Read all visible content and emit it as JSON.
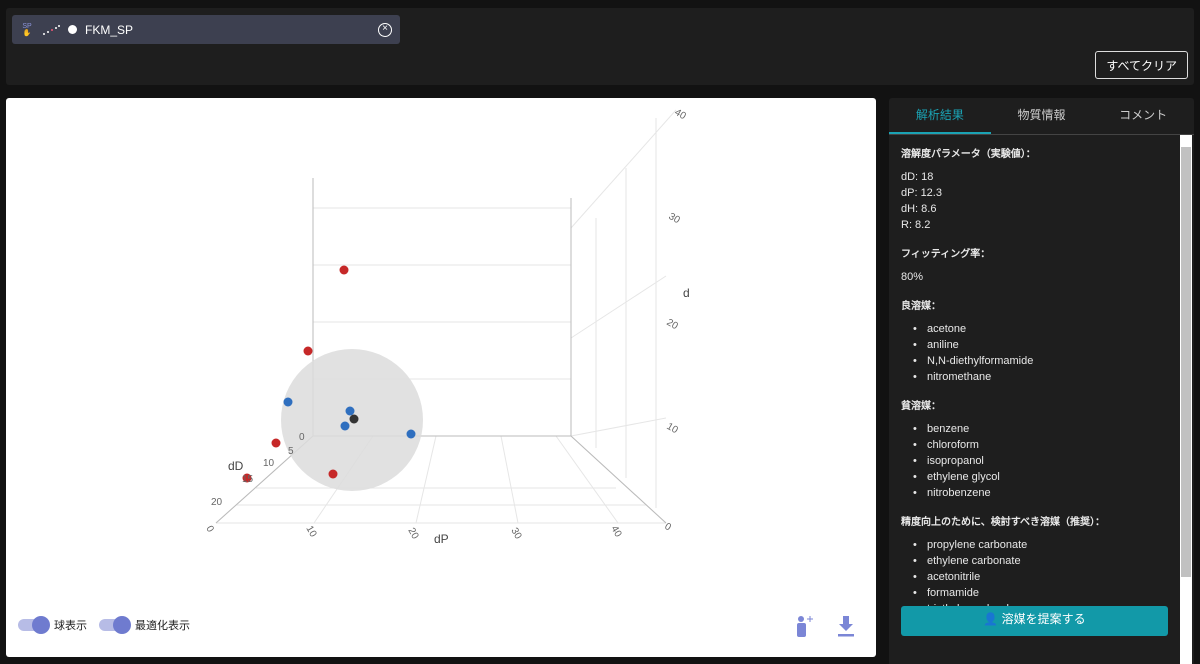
{
  "header": {
    "chip": {
      "badge": "SP",
      "name": "FKM_SP",
      "close_icon": "close-circle-icon"
    },
    "clear_all": "すべてクリア"
  },
  "plot": {
    "axes": {
      "x_title": "dD",
      "y_title": "dP",
      "z_title": "d",
      "x_ticks": [
        "0",
        "5",
        "10",
        "15",
        "20"
      ],
      "y_ticks": [
        "0",
        "10",
        "20",
        "30",
        "40"
      ],
      "z_ticks": [
        "0",
        "10",
        "20",
        "30",
        "40"
      ]
    },
    "colors": {
      "good": "#2f6fbf",
      "bad": "#c62828",
      "center": "#333333",
      "sphere": "#dcdcdc"
    },
    "toggles": [
      {
        "label": "球表示",
        "on": true
      },
      {
        "label": "最適化表示",
        "on": true
      }
    ],
    "icons": [
      "add-solvent-icon",
      "download-icon"
    ]
  },
  "side": {
    "tabs": [
      "解析結果",
      "物質情報",
      "コメント"
    ],
    "active_tab": 0,
    "params_title": "溶解度パラメータ（実験値）：",
    "params": [
      "dD: 18",
      "dP: 12.3",
      "dH: 8.6",
      "R: 8.2"
    ],
    "fit_title": "フィッティング率：",
    "fit": "80%",
    "good_title": "良溶媒：",
    "good": [
      "acetone",
      "aniline",
      "N,N-diethylformamide",
      "nitromethane"
    ],
    "bad_title": "貧溶媒：",
    "bad": [
      "benzene",
      "chloroform",
      "isopropanol",
      "ethylene glycol",
      "nitrobenzene"
    ],
    "rec_title": "精度向上のために、検討すべき溶媒（推奨）：",
    "rec": [
      "propylene carbonate",
      "ethylene carbonate",
      "acetonitrile",
      "formamide",
      "triethylene glycol"
    ],
    "cta": "溶媒を提案する"
  }
}
